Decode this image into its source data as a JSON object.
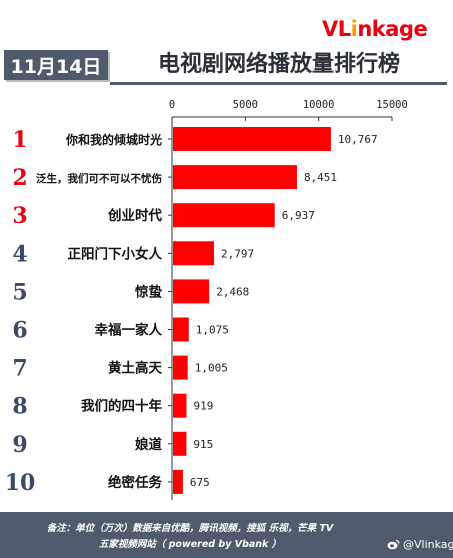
{
  "logo": {
    "v": "V",
    "l": "L",
    "i": "i",
    "rest": "nkage"
  },
  "header": {
    "date_badge": "11月14日",
    "title": "电视剧网络播放量排行榜"
  },
  "footer": {
    "note_line1": "备注：单位（万次）数据来自优酷，腾讯视频，搜狐 乐视，芒果 TV",
    "note_line2": "五家视频网站（ powered by Vbank ）",
    "weibo_handle": "@Vlinkage"
  },
  "colors": {
    "bar": "#ff0000",
    "rank_top3": "#e60012",
    "rank_other": "#3b4a66",
    "badge_bg": "#4f5b6d"
  },
  "chart_data": {
    "type": "bar",
    "orientation": "horizontal",
    "title": "电视剧网络播放量排行榜",
    "xlabel": "",
    "ylabel": "",
    "xlim": [
      0,
      15000
    ],
    "x_ticks": [
      "0",
      "5000",
      "10000",
      "15000"
    ],
    "ranks": [
      "1",
      "2",
      "3",
      "4",
      "5",
      "6",
      "7",
      "8",
      "9",
      "10"
    ],
    "categories": [
      "你和我的倾城时光",
      "泛生，我们可不可以不忧伤",
      "创业时代",
      "正阳门下小女人",
      "惊蛰",
      "幸福一家人",
      "黄土高天",
      "我们的四十年",
      "娘道",
      "绝密任务"
    ],
    "values": [
      10767,
      8451,
      6937,
      2797,
      2468,
      1075,
      1005,
      919,
      915,
      675
    ],
    "value_labels": [
      "10,767",
      "8,451",
      "6,937",
      "2,797",
      "2,468",
      "1,075",
      "1,005",
      "919",
      "915",
      "675"
    ],
    "grid": false,
    "legend": "none"
  }
}
